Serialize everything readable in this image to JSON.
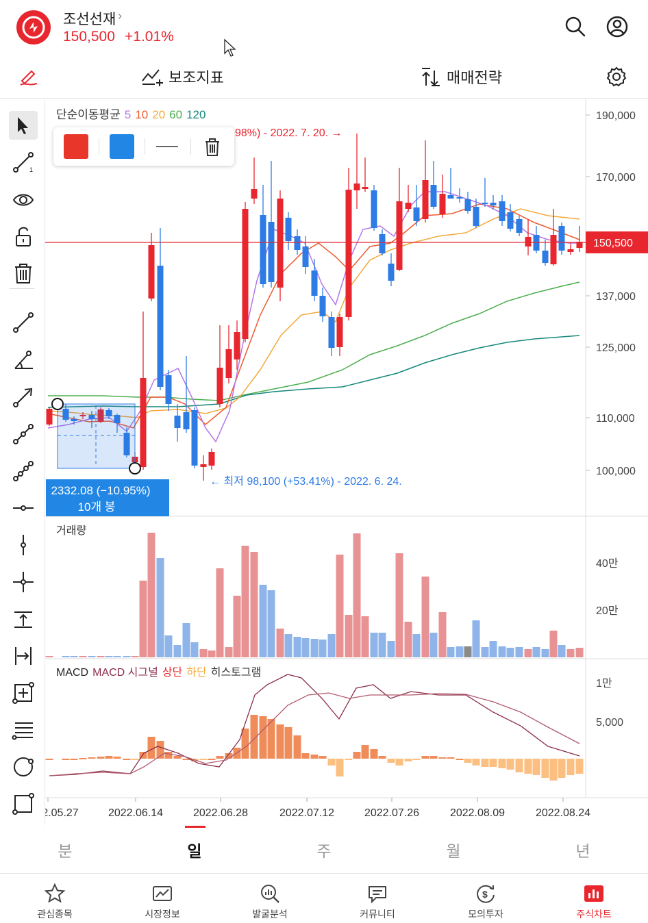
{
  "header": {
    "stock_name": "조선선재",
    "chevron": "›",
    "price": "150,500",
    "change": "+1.01%",
    "icons": [
      "search-icon",
      "account-icon"
    ]
  },
  "toolbar": {
    "indicator_label": "보조지표",
    "strategy_label": "매매전략",
    "icons": [
      "pen-icon",
      "indicator-icon",
      "strategy-icon",
      "settings-icon"
    ]
  },
  "tools": [
    "cursor",
    "line-1",
    "eye",
    "unlock",
    "trash",
    "trend-line",
    "angle-line",
    "arrow-line",
    "multi-line",
    "path-line",
    "horizontal-line",
    "vertical-line",
    "cross-line",
    "vertical-measure",
    "horizontal-measure",
    "add-box",
    "fib-lines",
    "circle",
    "rectangle"
  ],
  "popup": {
    "colors": [
      "#e8362a",
      "#2286e4"
    ],
    "icons": [
      "line-style-icon",
      "trash-icon"
    ]
  },
  "colors": {
    "up": "#e8262e",
    "down": "#2d7be5",
    "ma5": "#b575e8",
    "ma10": "#ef5a2f",
    "ma20": "#f2a93a",
    "ma60": "#4cae4f",
    "ma120": "#14877b"
  },
  "chart_data": {
    "type": "candlestick",
    "indicator": {
      "name": "단순이동평균",
      "periods": [
        "5",
        "10",
        "20",
        "60",
        "120"
      ]
    },
    "price_axis": [
      "190,000",
      "170,000",
      "137,000",
      "125,000",
      "110,000",
      "100,000"
    ],
    "current_price": "150,500",
    "annotations": {
      "high": "98%) - 2022. 7. 20.",
      "low": "최저 98,100 (+53.41%) - 2022. 6. 24.",
      "measure_value": "2332.08 (−10.95%)",
      "measure_bars": "10개 봉"
    },
    "volume": {
      "title": "거래량",
      "axis": [
        "40만",
        "20만"
      ]
    },
    "macd": {
      "labels": [
        "MACD",
        "MACD 시그널",
        "상단",
        "하단",
        "히스토그램"
      ],
      "axis": [
        "1만",
        "5,000"
      ]
    },
    "date_axis": [
      "2.05.27",
      "2022.06.14",
      "2022.06.28",
      "2022.07.12",
      "2022.07.26",
      "2022.08.09",
      "2022.08.24"
    ]
  },
  "period_tabs": [
    "분",
    "일",
    "주",
    "월",
    "년"
  ],
  "period_active": 1,
  "bottom_nav": [
    {
      "label": "관심종목",
      "icon": "star-icon"
    },
    {
      "label": "시장정보",
      "icon": "market-chart-icon"
    },
    {
      "label": "발굴분석",
      "icon": "magnifier-analysis-icon"
    },
    {
      "label": "커뮤니티",
      "icon": "chat-icon"
    },
    {
      "label": "모의투자",
      "icon": "money-cycle-icon"
    },
    {
      "label": "주식차트",
      "icon": "bar-chart-icon"
    }
  ]
}
